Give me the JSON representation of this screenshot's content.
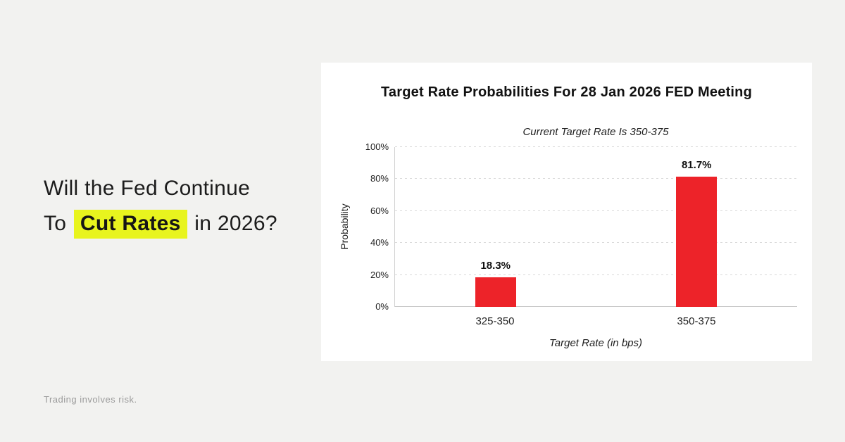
{
  "background_color": "#F2F2F0",
  "headline": {
    "line1": "Will the Fed Continue",
    "line2_prefix": "To ",
    "line2_highlight": "Cut Rates",
    "line2_suffix": " in 2026?",
    "highlight_color": "#E8F41E",
    "text_color": "#1C1C1C"
  },
  "footer": {
    "disclaimer": "Trading involves risk."
  },
  "chart_data": {
    "type": "bar",
    "title": "Target Rate Probabilities For 28 Jan 2026 FED Meeting",
    "subtitle": "Current Target Rate Is 350-375",
    "xlabel": "Target Rate (in bps)",
    "ylabel": "Probability",
    "categories": [
      "325-350",
      "350-375"
    ],
    "values": [
      18.3,
      81.7
    ],
    "value_labels": [
      "18.3%",
      "81.7%"
    ],
    "yticks": [
      "0%",
      "20%",
      "40%",
      "60%",
      "80%",
      "100%"
    ],
    "ylim": [
      0,
      100
    ],
    "bar_color": "#ED2329",
    "grid": "horizontal-dashed",
    "legend": "none"
  }
}
